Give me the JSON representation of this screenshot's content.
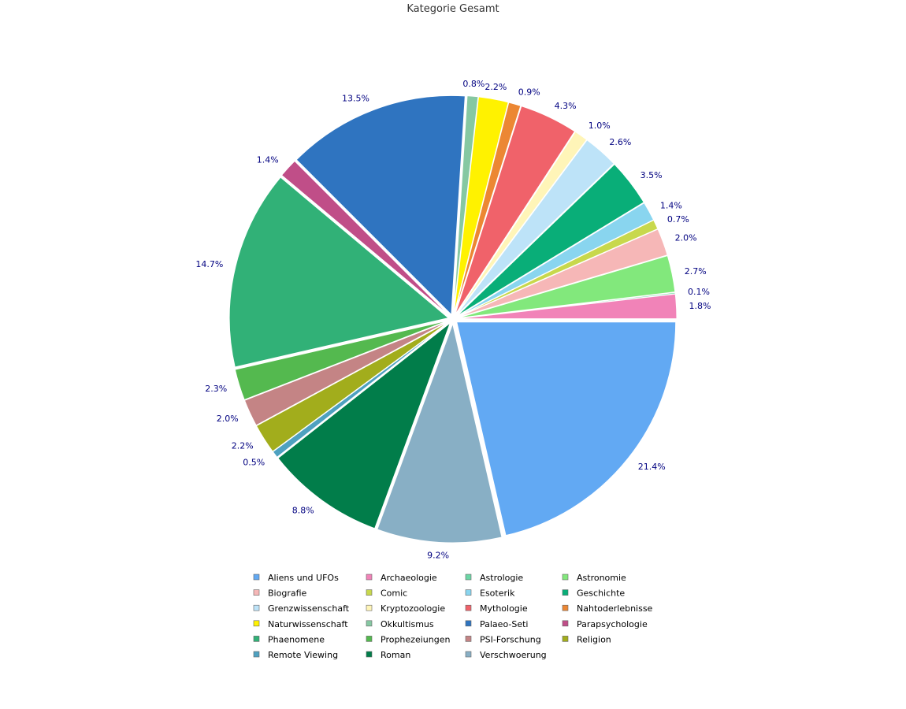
{
  "chart_data": {
    "type": "pie",
    "title": "Kategorie Gesamt",
    "legend_position": "bottom",
    "slices": [
      {
        "label": "Aliens und UFOs",
        "value": 21.4,
        "pct_label": "21.4%",
        "color": "#62a9f3"
      },
      {
        "label": "Verschwoerung",
        "value": 9.2,
        "pct_label": "9.2%",
        "color": "#88afc5"
      },
      {
        "label": "Roman",
        "value": 8.8,
        "pct_label": "8.8%",
        "color": "#017d4a"
      },
      {
        "label": "Remote Viewing",
        "value": 0.5,
        "pct_label": "0.5%",
        "color": "#4ea1c0"
      },
      {
        "label": "Religion",
        "value": 2.2,
        "pct_label": "2.2%",
        "color": "#a2ad1c"
      },
      {
        "label": "PSI-Forschung",
        "value": 2.0,
        "pct_label": "2.0%",
        "color": "#c48485"
      },
      {
        "label": "Prophezeiungen",
        "value": 2.3,
        "pct_label": "2.3%",
        "color": "#54b94f"
      },
      {
        "label": "Phaenomene",
        "value": 14.7,
        "pct_label": "14.7%",
        "color": "#31b177"
      },
      {
        "label": "Parapsychologie",
        "value": 1.4,
        "pct_label": "1.4%",
        "color": "#c04e88"
      },
      {
        "label": "Palaeo-Seti",
        "value": 13.5,
        "pct_label": "13.5%",
        "color": "#2f74c0"
      },
      {
        "label": "Okkultismus",
        "value": 0.8,
        "pct_label": "0.8%",
        "color": "#86c8a2"
      },
      {
        "label": "Naturwissenschaft",
        "value": 2.2,
        "pct_label": "2.2%",
        "color": "#fff200"
      },
      {
        "label": "Nahtoderlebnisse",
        "value": 0.9,
        "pct_label": "0.9%",
        "color": "#ec8733"
      },
      {
        "label": "Mythologie",
        "value": 4.3,
        "pct_label": "4.3%",
        "color": "#f0626a"
      },
      {
        "label": "Kryptozoologie",
        "value": 1.0,
        "pct_label": "1.0%",
        "color": "#fff5b8"
      },
      {
        "label": "Grenzwissenschaft",
        "value": 2.6,
        "pct_label": "2.6%",
        "color": "#bde3f8"
      },
      {
        "label": "Geschichte",
        "value": 3.5,
        "pct_label": "3.5%",
        "color": "#09ae78"
      },
      {
        "label": "Esoterik",
        "value": 1.4,
        "pct_label": "1.4%",
        "color": "#89d5ef"
      },
      {
        "label": "Comic",
        "value": 0.7,
        "pct_label": "0.7%",
        "color": "#c8d84c"
      },
      {
        "label": "Biografie",
        "value": 2.0,
        "pct_label": "2.0%",
        "color": "#f6b7b7"
      },
      {
        "label": "Astronomie",
        "value": 2.7,
        "pct_label": "2.7%",
        "color": "#82e87c"
      },
      {
        "label": "Astrologie",
        "value": 0.1,
        "pct_label": "0.1%",
        "color": "#6bd6a5"
      },
      {
        "label": "Archaeologie",
        "value": 1.8,
        "pct_label": "1.8%",
        "color": "#f183b8"
      }
    ],
    "legend": [
      {
        "label": "Aliens und UFOs",
        "color": "#62a9f3"
      },
      {
        "label": "Archaeologie",
        "color": "#f183b8"
      },
      {
        "label": "Astrologie",
        "color": "#6bd6a5"
      },
      {
        "label": "Astronomie",
        "color": "#82e87c"
      },
      {
        "label": "Biografie",
        "color": "#f6b7b7"
      },
      {
        "label": "Comic",
        "color": "#c8d84c"
      },
      {
        "label": "Esoterik",
        "color": "#89d5ef"
      },
      {
        "label": "Geschichte",
        "color": "#09ae78"
      },
      {
        "label": "Grenzwissenschaft",
        "color": "#bde3f8"
      },
      {
        "label": "Kryptozoologie",
        "color": "#fff5b8"
      },
      {
        "label": "Mythologie",
        "color": "#f0626a"
      },
      {
        "label": "Nahtoderlebnisse",
        "color": "#ec8733"
      },
      {
        "label": "Naturwissenschaft",
        "color": "#fff200"
      },
      {
        "label": "Okkultismus",
        "color": "#86c8a2"
      },
      {
        "label": "Palaeo-Seti",
        "color": "#2f74c0"
      },
      {
        "label": "Parapsychologie",
        "color": "#c04e88"
      },
      {
        "label": "Phaenomene",
        "color": "#31b177"
      },
      {
        "label": "Prophezeiungen",
        "color": "#54b94f"
      },
      {
        "label": "PSI-Forschung",
        "color": "#c48485"
      },
      {
        "label": "Religion",
        "color": "#a2ad1c"
      },
      {
        "label": "Remote Viewing",
        "color": "#4ea1c0"
      },
      {
        "label": "Roman",
        "color": "#017d4a"
      },
      {
        "label": "Verschwoerung",
        "color": "#88afc5"
      }
    ]
  }
}
